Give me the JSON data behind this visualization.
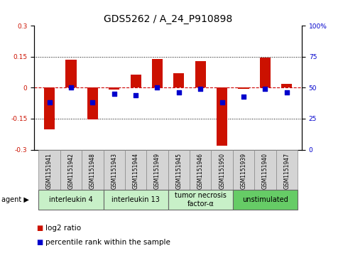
{
  "title": "GDS5262 / A_24_P910898",
  "samples": [
    "GSM1151941",
    "GSM1151942",
    "GSM1151948",
    "GSM1151943",
    "GSM1151944",
    "GSM1151949",
    "GSM1151945",
    "GSM1151946",
    "GSM1151950",
    "GSM1151939",
    "GSM1151940",
    "GSM1151947"
  ],
  "log2_ratio": [
    -0.2,
    0.135,
    -0.155,
    -0.01,
    0.065,
    0.14,
    0.07,
    0.13,
    -0.28,
    -0.005,
    0.145,
    0.02
  ],
  "percentile_rank": [
    38,
    50,
    38,
    45,
    44,
    50,
    46,
    49,
    38,
    43,
    49,
    46
  ],
  "agents": [
    {
      "label": "interleukin 4",
      "start": 0,
      "end": 3,
      "color": "#c8f0c8"
    },
    {
      "label": "interleukin 13",
      "start": 3,
      "end": 6,
      "color": "#c8f0c8"
    },
    {
      "label": "tumor necrosis\nfactor-α",
      "start": 6,
      "end": 9,
      "color": "#c8f0c8"
    },
    {
      "label": "unstimulated",
      "start": 9,
      "end": 12,
      "color": "#66cc66"
    }
  ],
  "ylim": [
    -0.3,
    0.3
  ],
  "y2lim": [
    0,
    100
  ],
  "yticks": [
    -0.3,
    -0.15,
    0.0,
    0.15,
    0.3
  ],
  "y2ticks": [
    0,
    25,
    50,
    75,
    100
  ],
  "bar_color": "#cc1100",
  "dot_color": "#0000cc",
  "hline_color": "#cc0000",
  "grid_color": "#000000",
  "bg_color": "#ffffff",
  "bar_width": 0.5,
  "dot_size": 18,
  "title_fontsize": 10,
  "tick_fontsize": 6.5,
  "label_fontsize": 5.5,
  "agent_fontsize": 7,
  "legend_fontsize": 7.5
}
